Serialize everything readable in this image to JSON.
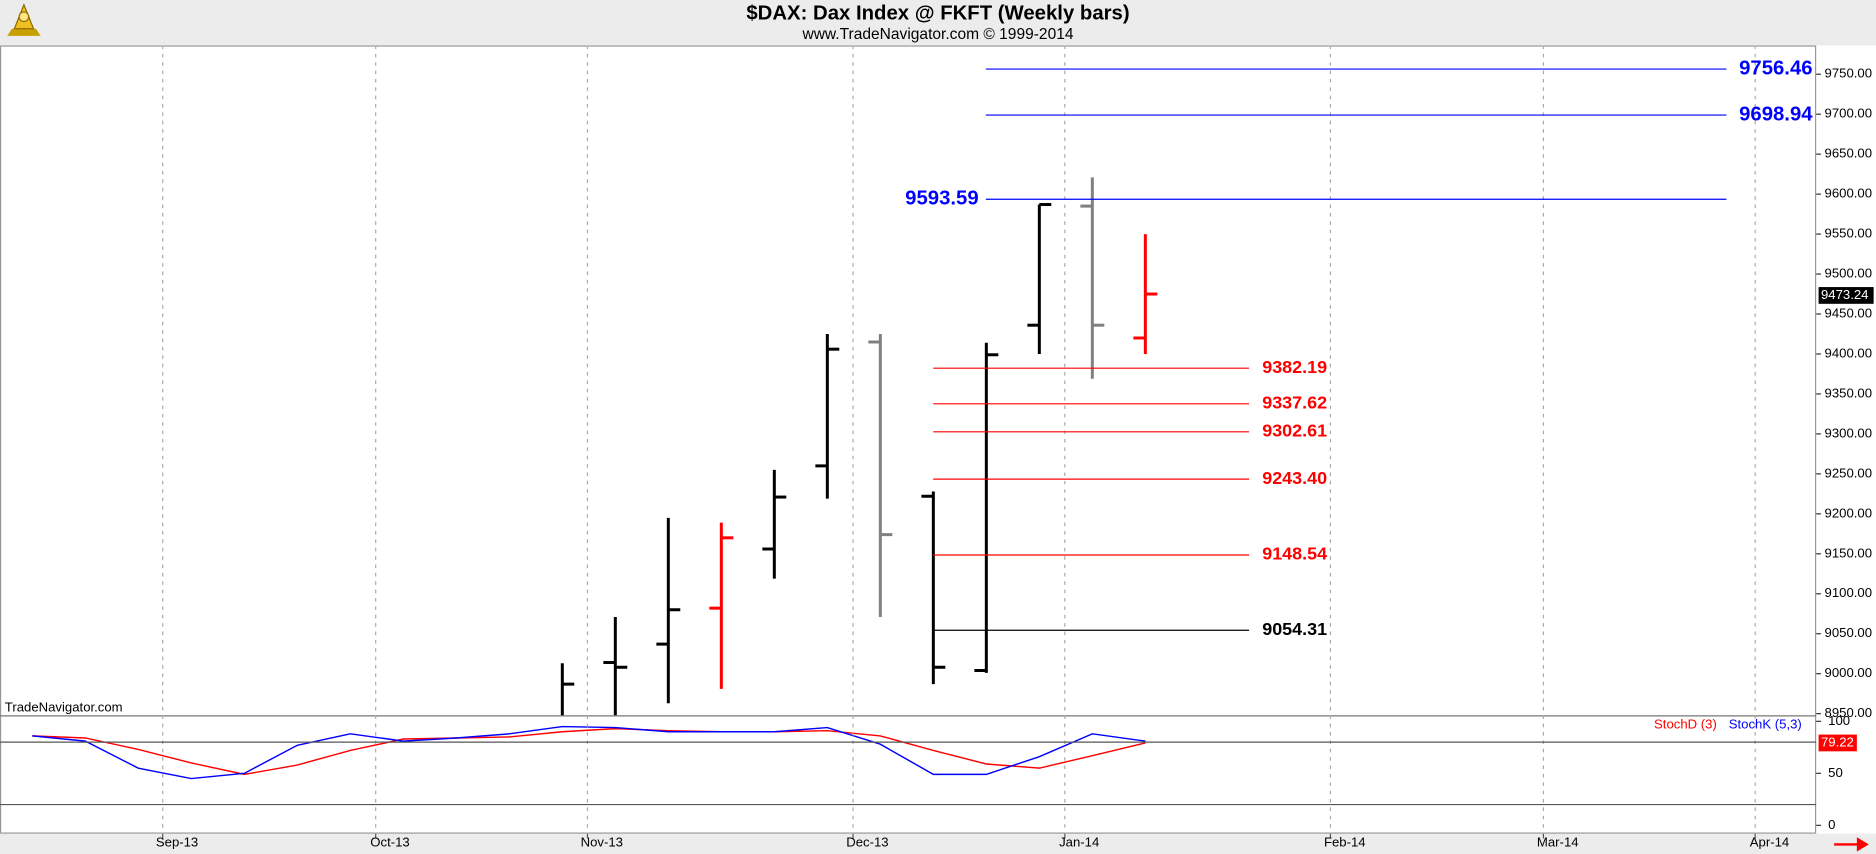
{
  "chart_data": {
    "type": "ohlc",
    "title": "$DAX:  Dax Index @ FKFT  (Weekly bars)",
    "subtitle": "www.TradeNavigator.com © 1999-2014",
    "watermark": "TradeNavigator.com",
    "months": [
      "Sep-13",
      "Oct-13",
      "Nov-13",
      "Dec-13",
      "Jan-14",
      "Feb-14",
      "Mar-14",
      "Apr-14"
    ],
    "grid": true,
    "price": {
      "open": [
        null,
        null,
        null,
        null,
        null,
        null,
        null,
        null,
        null,
        null,
        null,
        9014,
        9037,
        9082,
        9156,
        9260,
        9415,
        9222,
        9004,
        9436,
        9585,
        9420
      ],
      "high": [
        null,
        null,
        null,
        null,
        null,
        null,
        null,
        null,
        null,
        null,
        9013,
        9071,
        9195,
        9189,
        9255,
        9425,
        9425,
        9228,
        9414,
        9587,
        9621,
        9550
      ],
      "low": [
        null,
        null,
        null,
        null,
        null,
        null,
        null,
        null,
        null,
        null,
        8940,
        8940,
        8963,
        8981,
        9119,
        9219,
        9071,
        8987,
        9001,
        9400,
        9369,
        9400
      ],
      "close": [
        null,
        null,
        null,
        null,
        null,
        null,
        null,
        null,
        null,
        null,
        8987,
        9008,
        9080,
        9170,
        9221,
        9406,
        9174,
        9008,
        9399,
        9587,
        9436,
        9475
      ],
      "colors": [
        null,
        null,
        null,
        null,
        null,
        null,
        null,
        null,
        null,
        null,
        "#000000",
        "#000000",
        "#000000",
        "#ff0000",
        "#000000",
        "#000000",
        "#808080",
        "#000000",
        "#000000",
        "#000000",
        "#808080",
        "#ff0000"
      ],
      "ylim": [
        8948,
        9786
      ],
      "yticks": [
        {
          "value": 8950,
          "label": "8950.00"
        },
        {
          "value": 9000,
          "label": "9000.00"
        },
        {
          "value": 9050,
          "label": "9050.00"
        },
        {
          "value": 9100,
          "label": "9100.00"
        },
        {
          "value": 9150,
          "label": "9150.00"
        },
        {
          "value": 9200,
          "label": "9200.00"
        },
        {
          "value": 9250,
          "label": "9250.00"
        },
        {
          "value": 9300,
          "label": "9300.00"
        },
        {
          "value": 9350,
          "label": "9350.00"
        },
        {
          "value": 9400,
          "label": "9400.00"
        },
        {
          "value": 9450,
          "label": "9450.00"
        },
        {
          "value": 9500,
          "label": "9500.00"
        },
        {
          "value": 9550,
          "label": "9550.00"
        },
        {
          "value": 9600,
          "label": "9600.00"
        },
        {
          "value": 9650,
          "label": "9650.00"
        },
        {
          "value": 9700,
          "label": "9700.00"
        },
        {
          "value": 9750,
          "label": "9750.00"
        }
      ],
      "last_price": 9473.24
    },
    "levels": {
      "values": [
        9756.46,
        9698.94,
        9593.59,
        9382.19,
        9337.62,
        9302.61,
        9243.4,
        9148.54,
        9054.31
      ],
      "value_labels": [
        "9756.46",
        "9698.94",
        "9593.59",
        "9382.19",
        "9337.62",
        "9302.61",
        "9243.40",
        "9148.54",
        "9054.31"
      ],
      "colors": [
        "#0000ff",
        "#0000ff",
        "#0000ff",
        "#ff0000",
        "#ff0000",
        "#ff0000",
        "#ff0000",
        "#ff0000",
        "#000000"
      ]
    },
    "stochastic": {
      "series": [
        {
          "name": "StochD (3)",
          "color": "#ff0000",
          "values": [
            86,
            84,
            73,
            60,
            49,
            58,
            72,
            83,
            84,
            85,
            90,
            93,
            91,
            90,
            90,
            91,
            86,
            72,
            59,
            55,
            67,
            79.22
          ]
        },
        {
          "name": "StochK (5,3)",
          "color": "#0000ff",
          "values": [
            86,
            81,
            55,
            45,
            50,
            77,
            88,
            81,
            84,
            88,
            95,
            94,
            90,
            90,
            90,
            94,
            78,
            49,
            49,
            66,
            88,
            81
          ]
        }
      ],
      "ylim": [
        -8,
        104.7
      ],
      "yticks": [
        0,
        50,
        100
      ],
      "levels": [
        80,
        20
      ]
    }
  }
}
